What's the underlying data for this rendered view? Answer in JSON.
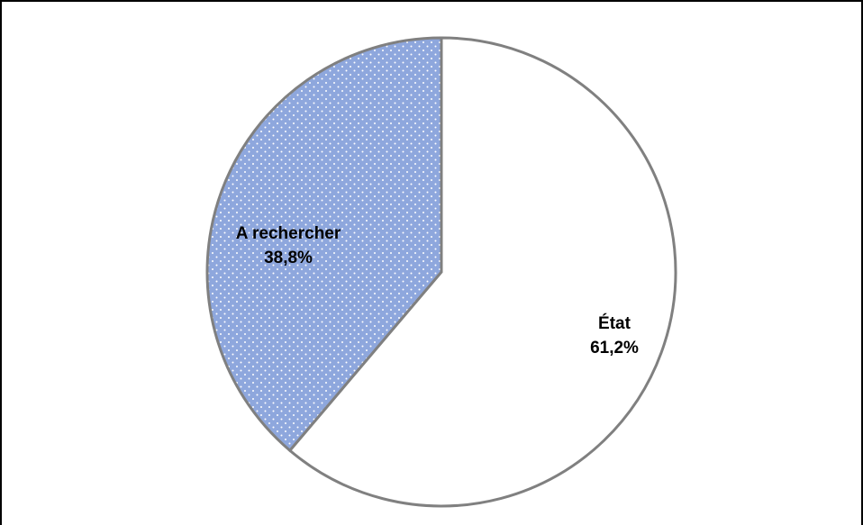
{
  "chart_data": {
    "type": "pie",
    "title": "",
    "slices": [
      {
        "label": "État",
        "value": 61.2,
        "display": "61,2%",
        "color": "#ffffff",
        "pattern": "none"
      },
      {
        "label": "A rechercher",
        "value": 38.8,
        "display": "38,8%",
        "color": "#8ea7dd",
        "pattern": "white-dots"
      }
    ],
    "start_angle": "12 o'clock",
    "direction": "clockwise",
    "outline_color": "#808080",
    "legend": "none"
  }
}
